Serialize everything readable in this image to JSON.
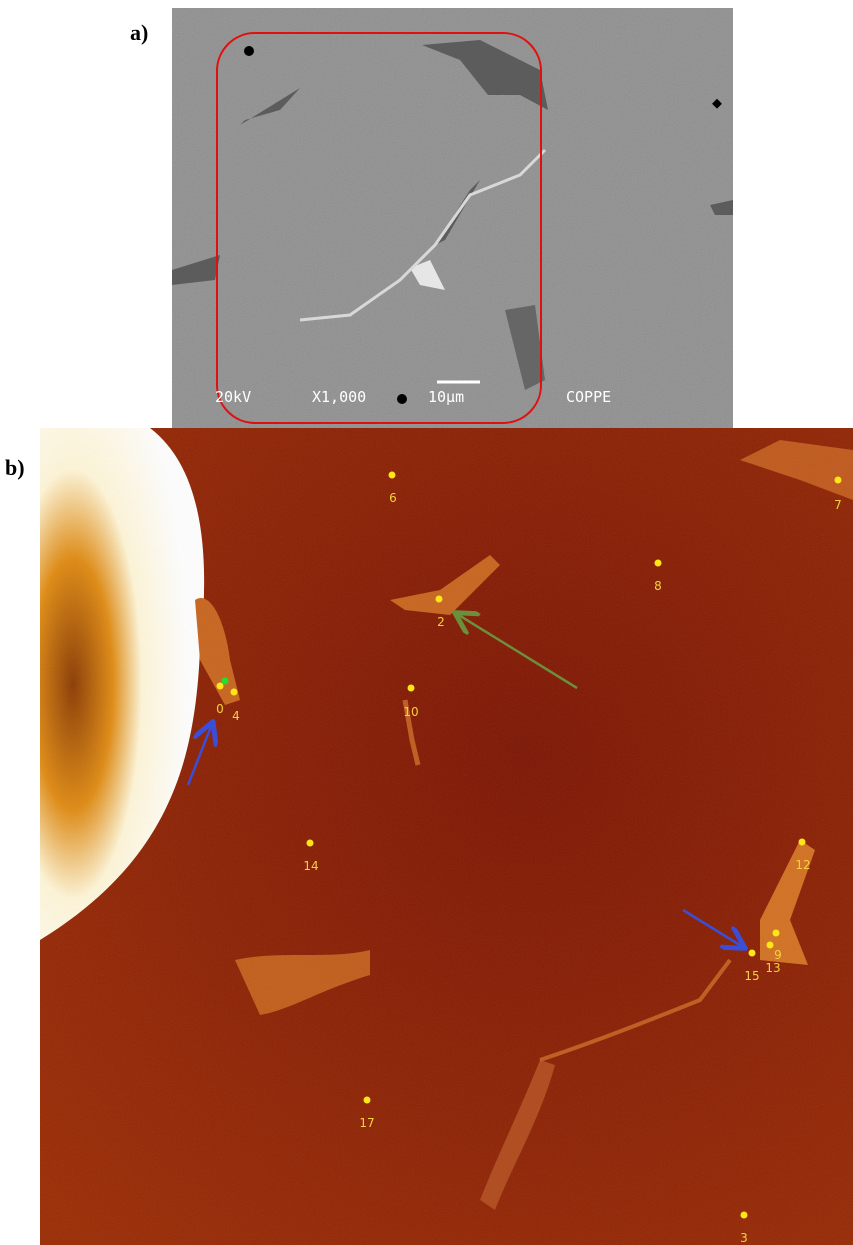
{
  "panel_a": {
    "label": "a)",
    "overlay": [
      "20kV",
      "X1,000",
      "10µm",
      "COPPE"
    ]
  },
  "panel_b": {
    "label": "b)",
    "points": [
      "6",
      "7",
      "8",
      "2",
      "0",
      "4",
      "10",
      "14",
      "12",
      "9",
      "13",
      "15",
      "17",
      "3"
    ]
  }
}
